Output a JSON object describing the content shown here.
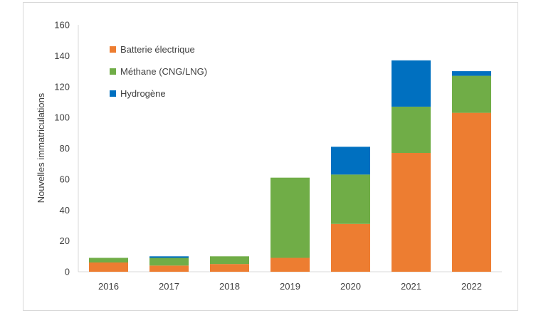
{
  "chart_data": {
    "type": "bar",
    "stacked": true,
    "categories": [
      "2016",
      "2017",
      "2018",
      "2019",
      "2020",
      "2021",
      "2022"
    ],
    "series": [
      {
        "name": "Batterie électrique",
        "color": "#ed7d31",
        "values": [
          6,
          4,
          5,
          9,
          31,
          77,
          103
        ]
      },
      {
        "name": "Méthane (CNG/LNG)",
        "color": "#70ad47",
        "values": [
          3,
          5,
          5,
          52,
          32,
          30,
          24
        ]
      },
      {
        "name": "Hydrogène",
        "color": "#0070c0",
        "values": [
          0,
          1,
          0,
          0,
          18,
          30,
          3
        ]
      }
    ],
    "ylabel": "Nouvelles immatriculations",
    "xlabel": "",
    "ylim": [
      0,
      160
    ],
    "yticks": [
      "0",
      "20",
      "40",
      "60",
      "80",
      "100",
      "120",
      "140",
      "160"
    ],
    "grid": false,
    "legend": "top-left, inside plot"
  }
}
